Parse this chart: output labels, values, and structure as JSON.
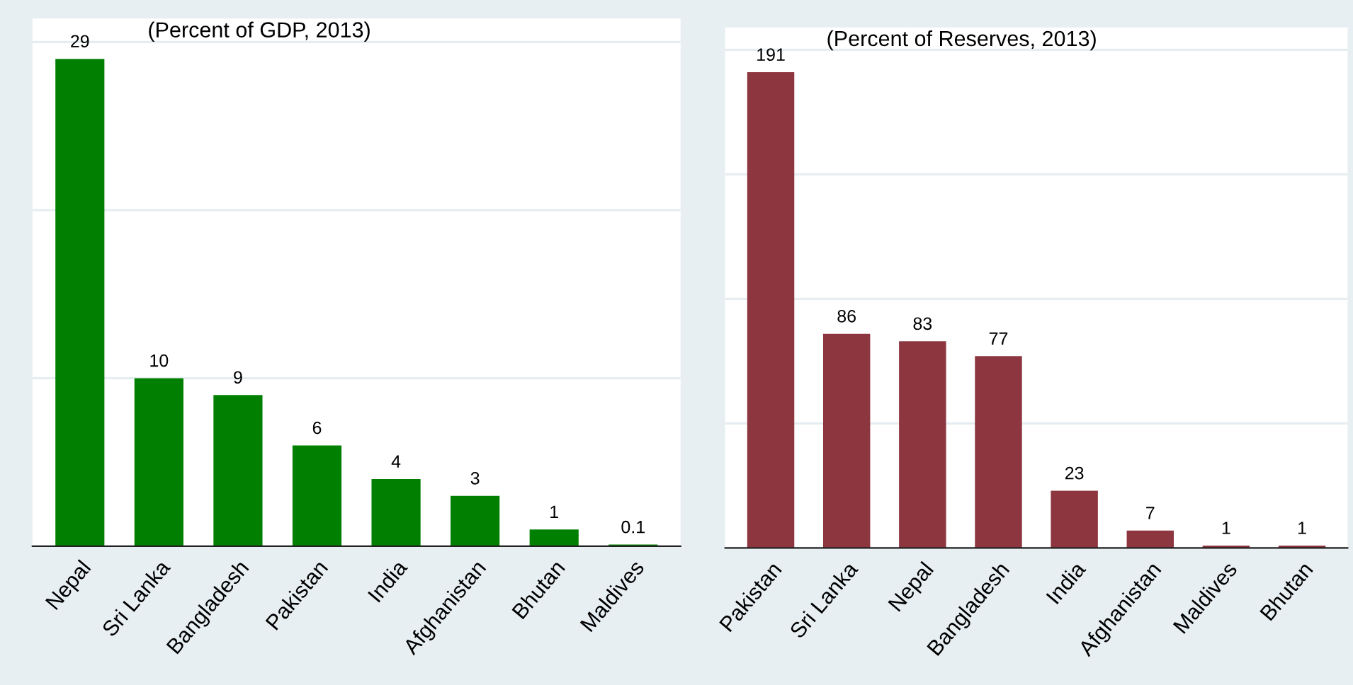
{
  "chart_data": [
    {
      "type": "bar",
      "title": "(Percent of GDP, 2013)",
      "categories": [
        "Nepal",
        "Sri Lanka",
        "Bangladesh",
        "Pakistan",
        "India",
        "Afghanistan",
        "Bhutan",
        "Maldives"
      ],
      "values": [
        29,
        10,
        9,
        6,
        4,
        3,
        1,
        0.1
      ],
      "color": "#007f00",
      "ylim": [
        0,
        31.4
      ],
      "yticks": [
        {
          "value": 0,
          "label": null
        },
        {
          "value": 10,
          "label": null
        },
        {
          "value": 20,
          "label": null
        },
        {
          "value": 30,
          "label": null
        }
      ],
      "grid": "y",
      "data_labels": true,
      "tick_labels": "x"
    },
    {
      "type": "bar",
      "title": "(Percent of Reserves, 2013)",
      "categories": [
        "Pakistan",
        "Sri Lanka",
        "Nepal",
        "Bangladesh",
        "India",
        "Afghanistan",
        "Maldives",
        "Bhutan"
      ],
      "values": [
        191,
        86,
        83,
        77,
        23,
        7,
        1,
        1
      ],
      "color": "#8e3640",
      "ylim": [
        0,
        209
      ],
      "yticks": [
        {
          "value": 0,
          "label": null
        },
        {
          "value": 50,
          "label": null
        },
        {
          "value": 100,
          "label": null
        },
        {
          "value": 150,
          "label": null
        },
        {
          "value": 200,
          "label": null
        }
      ],
      "grid": "y",
      "data_labels": true,
      "tick_labels": "x"
    }
  ]
}
